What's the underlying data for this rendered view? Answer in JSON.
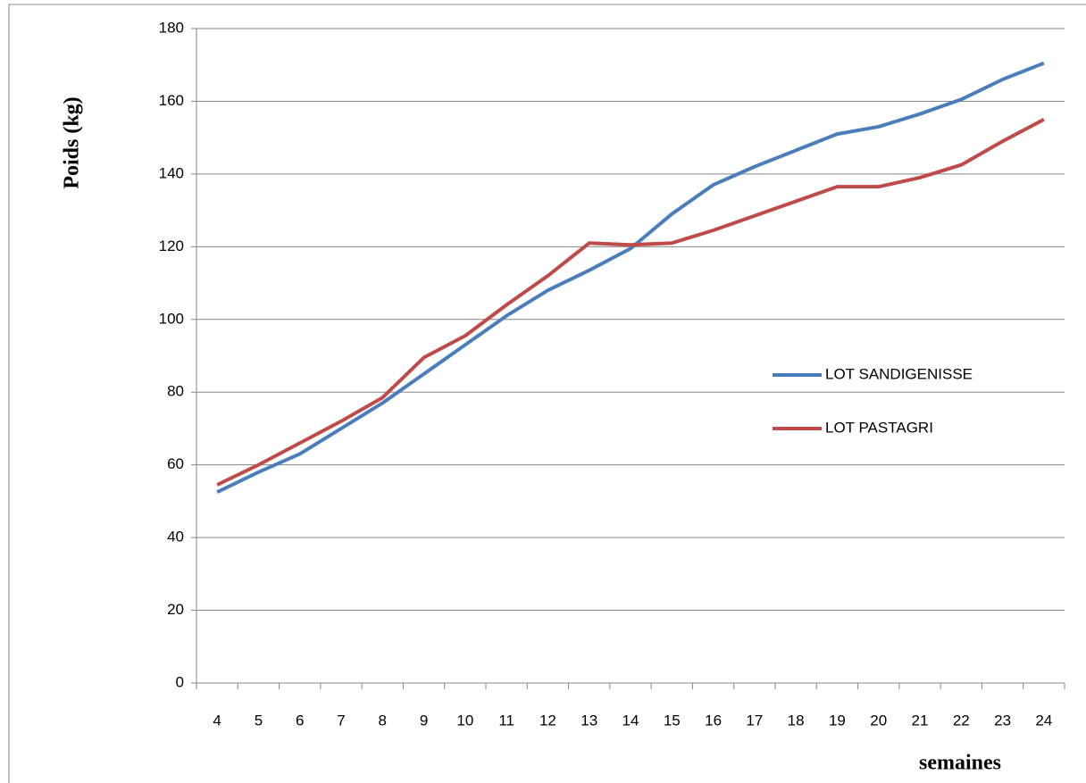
{
  "chart_data": {
    "type": "line",
    "y_label": "Poids (kg)",
    "x_label": "semaines",
    "categories": [
      "4",
      "5",
      "6",
      "7",
      "8",
      "9",
      "10",
      "11",
      "12",
      "13",
      "14",
      "15",
      "16",
      "17",
      "18",
      "19",
      "20",
      "21",
      "22",
      "23",
      "24"
    ],
    "series": [
      {
        "name": "LOT SANDIGENISSE",
        "color": "#4a7ebb",
        "values": [
          52.5,
          58,
          63,
          70,
          77,
          85,
          93,
          101,
          108,
          113.5,
          119.5,
          129,
          137,
          142,
          146.5,
          151,
          153,
          156.5,
          160.5,
          166,
          170.5
        ]
      },
      {
        "name": "LOT PASTAGRI",
        "color": "#be4b48",
        "values": [
          54.5,
          60,
          66,
          72,
          78.5,
          89.5,
          95.5,
          104,
          112,
          121,
          120.5,
          121,
          124.5,
          128.5,
          132.5,
          136.5,
          136.5,
          139,
          142.5,
          149,
          155
        ]
      }
    ],
    "ylim": [
      0,
      180
    ],
    "yticks": [
      0,
      20,
      40,
      60,
      80,
      100,
      120,
      140,
      160,
      180
    ],
    "grid": true,
    "legend": "right"
  }
}
